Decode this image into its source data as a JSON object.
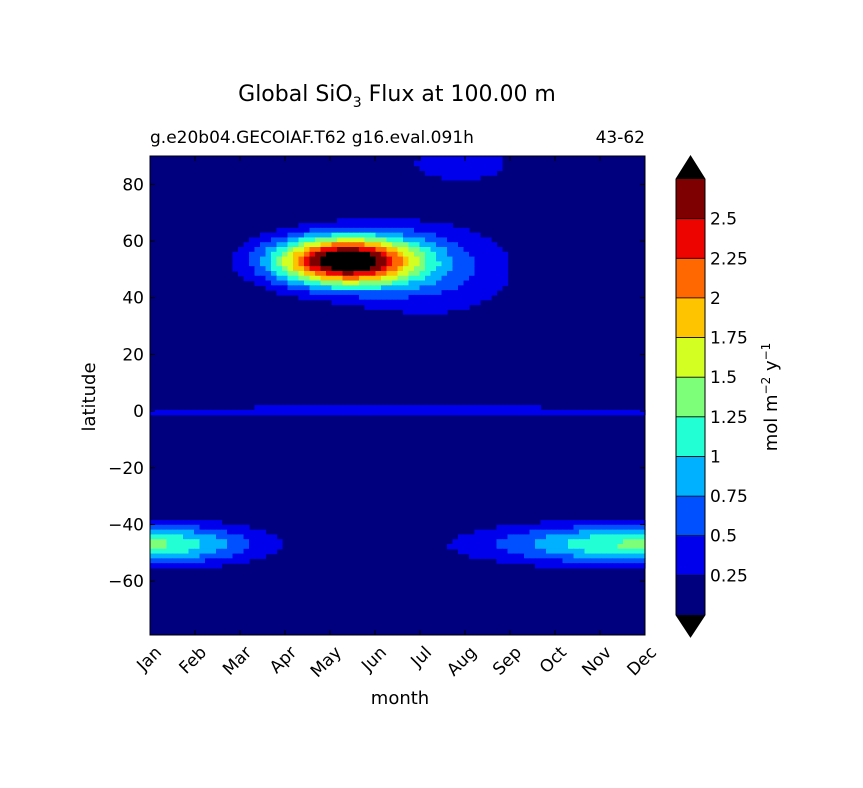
{
  "chart_data": {
    "type": "heatmap",
    "title_prefix": "Global SiO",
    "title_sub": "3",
    "title_suffix": " Flux at 100.00 m",
    "subtitle_left": "g.e20b04.GECOIAF.T62 g16.eval.091h",
    "subtitle_right": "43-62",
    "xlabel": "month",
    "ylabel": "latitude",
    "x_categories": [
      "Jan",
      "Feb",
      "Mar",
      "Apr",
      "May",
      "Jun",
      "Jul",
      "Aug",
      "Sep",
      "Oct",
      "Nov",
      "Dec"
    ],
    "xlim": [
      1,
      12
    ],
    "ylim": [
      -79,
      90
    ],
    "y_ticks": [
      "−60",
      "−40",
      "−20",
      "0",
      "20",
      "40",
      "60",
      "80"
    ],
    "y_tick_values": [
      -60,
      -40,
      -20,
      0,
      20,
      40,
      60,
      80
    ],
    "colorbar": {
      "label_main": "mol m",
      "label_exp1": "−2",
      "label_mid": " y",
      "label_exp2": "−1",
      "tick_labels": [
        "0.25",
        "0.5",
        "0.75",
        "1",
        "1.25",
        "1.5",
        "1.75",
        "2",
        "2.25",
        "2.5"
      ],
      "levels": [
        0,
        0.25,
        0.5,
        0.75,
        1,
        1.25,
        1.5,
        1.75,
        2,
        2.25,
        2.5,
        2.75
      ],
      "colors": [
        "#00007f",
        "#0000ed",
        "#0050ff",
        "#00b1ff",
        "#23ffd4",
        "#7dff7a",
        "#d4ff23",
        "#ffc400",
        "#ff6700",
        "#ed0400",
        "#7f0000"
      ],
      "under_color": "#000000",
      "over_color": "#000000"
    },
    "features": [
      {
        "name": "northern-spring-bloom",
        "month_center": 5.3,
        "lat_center": 53,
        "peak": 3.0,
        "month_width": 1.1,
        "lat_width": 6
      },
      {
        "name": "northern-bloom-extension",
        "month_center": 7.2,
        "lat_center": 50,
        "peak": 0.55,
        "month_width": 1.4,
        "lat_width": 12
      },
      {
        "name": "equatorial-band",
        "month_center": 6.5,
        "lat_center": 0,
        "peak": 0.3,
        "month_width": 10,
        "lat_width": 2.5
      },
      {
        "name": "southern-summer-jan",
        "month_center": 1.0,
        "lat_center": -47,
        "peak": 1.3,
        "month_width": 1.6,
        "lat_width": 5
      },
      {
        "name": "southern-summer-dec",
        "month_center": 12.0,
        "lat_center": -47,
        "peak": 1.3,
        "month_width": 2.4,
        "lat_width": 5
      },
      {
        "name": "arctic-summer",
        "month_center": 7.9,
        "lat_center": 88,
        "peak": 0.4,
        "month_width": 1.0,
        "lat_width": 6
      }
    ]
  }
}
